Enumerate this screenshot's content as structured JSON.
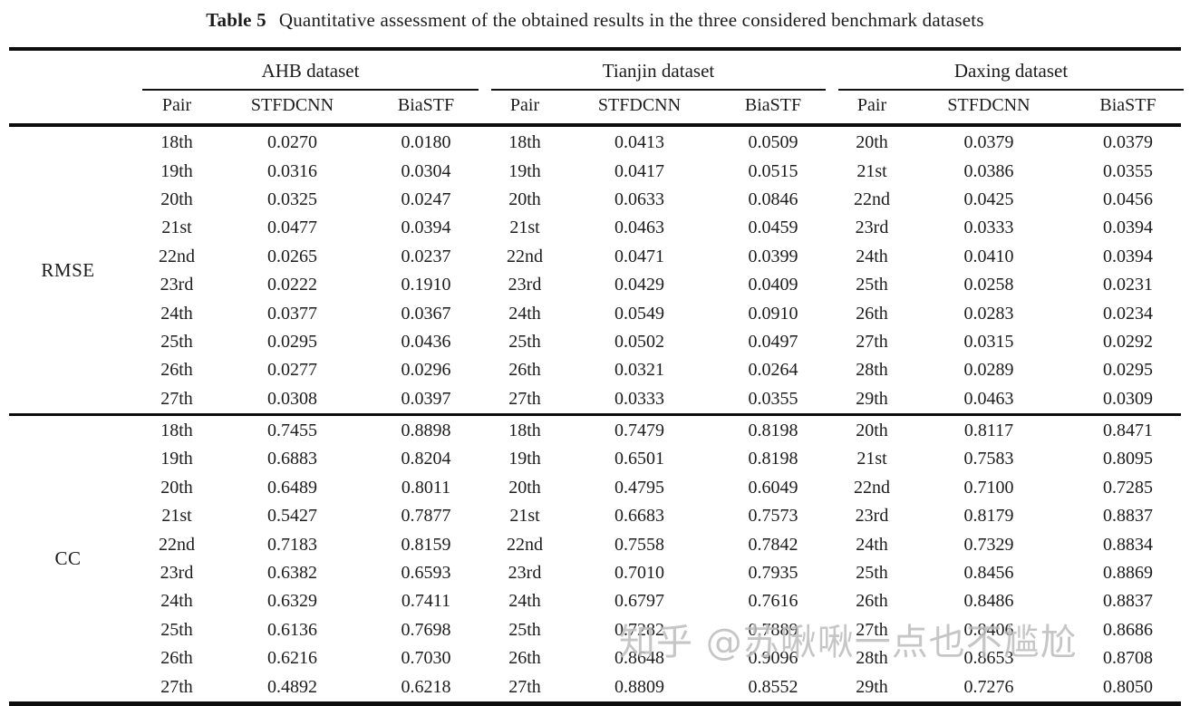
{
  "page": {
    "caption_label": "Table 5",
    "caption_text": "Quantitative assessment of the obtained results in the three considered benchmark datasets"
  },
  "table": {
    "groups": [
      {
        "name": "AHB dataset"
      },
      {
        "name": "Tianjin dataset"
      },
      {
        "name": "Daxing dataset"
      }
    ],
    "sub_headers": [
      "Pair",
      "STFDCNN",
      "BiaSTF"
    ],
    "sections": [
      {
        "metric": "RMSE",
        "rows": [
          [
            "18th",
            "0.0270",
            "0.0180",
            "18th",
            "0.0413",
            "0.0509",
            "20th",
            "0.0379",
            "0.0379"
          ],
          [
            "19th",
            "0.0316",
            "0.0304",
            "19th",
            "0.0417",
            "0.0515",
            "21st",
            "0.0386",
            "0.0355"
          ],
          [
            "20th",
            "0.0325",
            "0.0247",
            "20th",
            "0.0633",
            "0.0846",
            "22nd",
            "0.0425",
            "0.0456"
          ],
          [
            "21st",
            "0.0477",
            "0.0394",
            "21st",
            "0.0463",
            "0.0459",
            "23rd",
            "0.0333",
            "0.0394"
          ],
          [
            "22nd",
            "0.0265",
            "0.0237",
            "22nd",
            "0.0471",
            "0.0399",
            "24th",
            "0.0410",
            "0.0394"
          ],
          [
            "23rd",
            "0.0222",
            "0.1910",
            "23rd",
            "0.0429",
            "0.0409",
            "25th",
            "0.0258",
            "0.0231"
          ],
          [
            "24th",
            "0.0377",
            "0.0367",
            "24th",
            "0.0549",
            "0.0910",
            "26th",
            "0.0283",
            "0.0234"
          ],
          [
            "25th",
            "0.0295",
            "0.0436",
            "25th",
            "0.0502",
            "0.0497",
            "27th",
            "0.0315",
            "0.0292"
          ],
          [
            "26th",
            "0.0277",
            "0.0296",
            "26th",
            "0.0321",
            "0.0264",
            "28th",
            "0.0289",
            "0.0295"
          ],
          [
            "27th",
            "0.0308",
            "0.0397",
            "27th",
            "0.0333",
            "0.0355",
            "29th",
            "0.0463",
            "0.0309"
          ]
        ]
      },
      {
        "metric": "CC",
        "rows": [
          [
            "18th",
            "0.7455",
            "0.8898",
            "18th",
            "0.7479",
            "0.8198",
            "20th",
            "0.8117",
            "0.8471"
          ],
          [
            "19th",
            "0.6883",
            "0.8204",
            "19th",
            "0.6501",
            "0.8198",
            "21st",
            "0.7583",
            "0.8095"
          ],
          [
            "20th",
            "0.6489",
            "0.8011",
            "20th",
            "0.4795",
            "0.6049",
            "22nd",
            "0.7100",
            "0.7285"
          ],
          [
            "21st",
            "0.5427",
            "0.7877",
            "21st",
            "0.6683",
            "0.7573",
            "23rd",
            "0.8179",
            "0.8837"
          ],
          [
            "22nd",
            "0.7183",
            "0.8159",
            "22nd",
            "0.7558",
            "0.7842",
            "24th",
            "0.7329",
            "0.8834"
          ],
          [
            "23rd",
            "0.6382",
            "0.6593",
            "23rd",
            "0.7010",
            "0.7935",
            "25th",
            "0.8456",
            "0.8869"
          ],
          [
            "24th",
            "0.6329",
            "0.7411",
            "24th",
            "0.6797",
            "0.7616",
            "26th",
            "0.8486",
            "0.8837"
          ],
          [
            "25th",
            "0.6136",
            "0.7698",
            "25th",
            "0.7282",
            "0.7889",
            "27th",
            "0.8406",
            "0.8686"
          ],
          [
            "26th",
            "0.6216",
            "0.7030",
            "26th",
            "0.8648",
            "0.9096",
            "28th",
            "0.8653",
            "0.8708"
          ],
          [
            "27th",
            "0.4892",
            "0.6218",
            "27th",
            "0.8809",
            "0.8552",
            "29th",
            "0.7276",
            "0.8050"
          ]
        ]
      }
    ]
  },
  "watermark": {
    "text": "知乎 @苏啾啾一点也不尴尬",
    "color": "#bdbdbd"
  }
}
